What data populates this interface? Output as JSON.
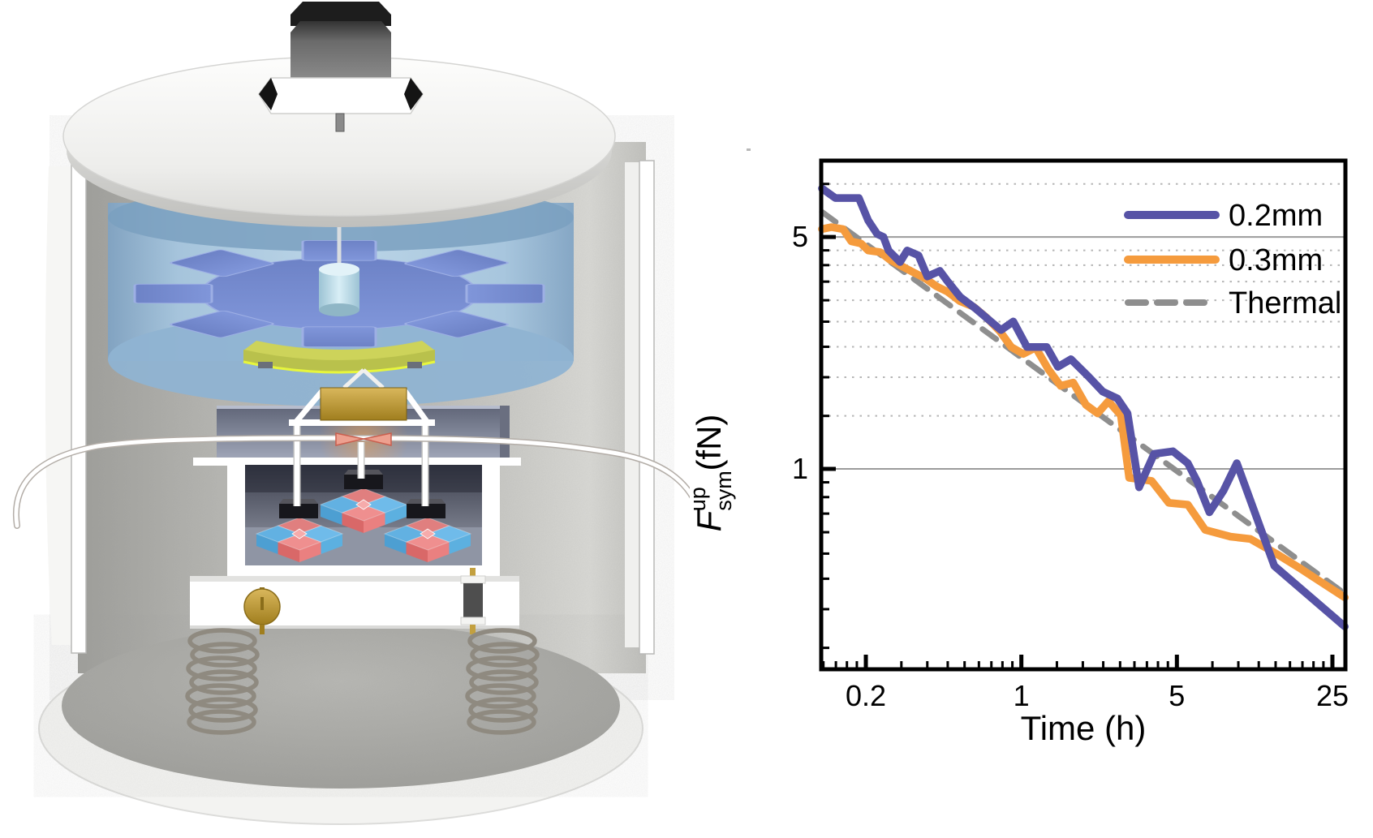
{
  "chart_data": {
    "type": "line",
    "title": "",
    "xlabel": "Time (h)",
    "ylabel": "F_sym^up (fN)",
    "ylabel_parts": {
      "base": "F",
      "subscript": "sym",
      "superscript": "up",
      "unit": "(fN)"
    },
    "x_scale": "log",
    "y_scale": "log",
    "xlim": [
      0.126,
      28.6
    ],
    "ylim": [
      0.249,
      8.49
    ],
    "x_ticks_major": [
      0.2,
      1,
      5,
      25
    ],
    "x_tick_labels": [
      "0.2",
      "1",
      "5",
      "25"
    ],
    "x_ticks_minor": [
      0.1289,
      0.1467,
      0.1644,
      0.1822,
      0.2889,
      0.3778,
      0.4667,
      0.5556,
      0.6444,
      0.7333,
      0.8222,
      0.9111,
      1.4444,
      1.8889,
      2.3333,
      2.7778,
      3.2222,
      3.6667,
      4.1111,
      4.5556,
      7.2222,
      9.4444,
      11.6667,
      13.8889,
      16.1111,
      18.3333,
      20.5556,
      22.7778
    ],
    "y_ticks_major": [
      5,
      1
    ],
    "y_tick_labels": [
      "5",
      "1"
    ],
    "y_ticks_minor": [
      7.2222,
      4.5556,
      4.1111,
      3.6667,
      3.2222,
      2.7778,
      2.3333,
      1.8889,
      1.4444,
      0.9111,
      0.8222,
      0.7333,
      0.6444,
      0.5556,
      0.4667,
      0.3778,
      0.2889
    ],
    "y_gridlines_solid": [
      5,
      1
    ],
    "y_gridlines_dotted": [
      7.2222,
      4.5556,
      4.1111,
      3.6667,
      3.2222,
      2.7778,
      2.3333,
      1.8889,
      1.4444
    ],
    "grid": "horizontal-only",
    "legend_position": "top-right",
    "legend": [
      {
        "label": "0.2mm",
        "color": "#5753a6",
        "dash": "solid"
      },
      {
        "label": "0.3mm",
        "color": "#f59b3d",
        "dash": "solid"
      },
      {
        "label": "Thermal",
        "color": "#8e8e8e",
        "dash": "dashed"
      }
    ],
    "series": [
      {
        "name": "Thermal",
        "color": "#8e8e8e",
        "dashed": true,
        "points": [
          [
            0.127,
            5.95
          ],
          [
            28.5,
            0.42
          ]
        ]
      },
      {
        "name": "0.3mm",
        "color": "#f59b3d",
        "dashed": false,
        "points": [
          [
            0.127,
            5.28
          ],
          [
            0.14,
            5.35
          ],
          [
            0.158,
            5.28
          ],
          [
            0.172,
            4.85
          ],
          [
            0.19,
            4.78
          ],
          [
            0.205,
            4.55
          ],
          [
            0.232,
            4.5
          ],
          [
            0.255,
            4.28
          ],
          [
            0.29,
            4.08
          ],
          [
            0.325,
            3.92
          ],
          [
            0.37,
            3.75
          ],
          [
            0.415,
            3.55
          ],
          [
            0.465,
            3.42
          ],
          [
            0.53,
            3.2
          ],
          [
            0.61,
            3.08
          ],
          [
            0.7,
            2.85
          ],
          [
            0.8,
            2.6
          ],
          [
            0.9,
            2.33
          ],
          [
            1.02,
            2.22
          ],
          [
            1.16,
            2.32
          ],
          [
            1.32,
            2.0
          ],
          [
            1.5,
            1.78
          ],
          [
            1.71,
            1.82
          ],
          [
            1.95,
            1.56
          ],
          [
            2.2,
            1.47
          ],
          [
            2.46,
            1.6
          ],
          [
            2.8,
            1.45
          ],
          [
            3.05,
            0.94
          ],
          [
            3.85,
            0.92
          ],
          [
            4.6,
            0.79
          ],
          [
            5.6,
            0.78
          ],
          [
            6.7,
            0.655
          ],
          [
            8.7,
            0.625
          ],
          [
            10.7,
            0.615
          ],
          [
            14.0,
            0.555
          ],
          [
            18.0,
            0.5
          ],
          [
            23.5,
            0.445
          ],
          [
            28.4,
            0.41
          ]
        ]
      },
      {
        "name": "0.2mm",
        "color": "#5753a6",
        "dashed": false,
        "points": [
          [
            0.127,
            7.0
          ],
          [
            0.146,
            6.55
          ],
          [
            0.186,
            6.55
          ],
          [
            0.205,
            5.6
          ],
          [
            0.225,
            5.1
          ],
          [
            0.24,
            5.0
          ],
          [
            0.253,
            4.55
          ],
          [
            0.285,
            4.2
          ],
          [
            0.307,
            4.55
          ],
          [
            0.345,
            4.4
          ],
          [
            0.378,
            3.8
          ],
          [
            0.43,
            3.95
          ],
          [
            0.465,
            3.68
          ],
          [
            0.53,
            3.3
          ],
          [
            0.62,
            3.05
          ],
          [
            0.72,
            2.8
          ],
          [
            0.81,
            2.62
          ],
          [
            0.92,
            2.78
          ],
          [
            1.06,
            2.33
          ],
          [
            1.3,
            2.33
          ],
          [
            1.46,
            2.03
          ],
          [
            1.67,
            2.14
          ],
          [
            2.0,
            1.9
          ],
          [
            2.32,
            1.71
          ],
          [
            2.7,
            1.63
          ],
          [
            3.0,
            1.47
          ],
          [
            3.38,
            0.88
          ],
          [
            3.95,
            1.11
          ],
          [
            4.8,
            1.13
          ],
          [
            5.6,
            1.04
          ],
          [
            6.15,
            0.92
          ],
          [
            7.0,
            0.74
          ],
          [
            8.1,
            0.86
          ],
          [
            9.3,
            1.04
          ],
          [
            13.7,
            0.51
          ],
          [
            28.4,
            0.335
          ]
        ]
      }
    ]
  },
  "apparatus": {
    "colors": {
      "shell_white": "#f3f3f1",
      "interior_gray": "#b4b4b0",
      "floor_gray": "#a6a6a2",
      "glass_blue": "#9ec2de",
      "rotor_blue": "#7287cc",
      "hub_blue": "#c9e6f0",
      "shield_yellow": "#bfc74e",
      "shield_edge": "#e7f63c",
      "mass_gold": "#c3a03f",
      "magnet_red": "#ee8a8a",
      "magnet_blue": "#6ab8e8",
      "motor_dark": "#3c3c3c",
      "spring_gray": "#8f8a80",
      "slab_gray": "#7d8296",
      "fiber_joint_red": "#e0614e"
    },
    "parts": [
      "drive-motor",
      "hex-mount",
      "chamber-lid",
      "vacuum-chamber-shell",
      "glass-cell",
      "gear-rotor",
      "rotor-hub",
      "rotor-shaft",
      "shield-disk",
      "test-mass-block",
      "support-frame",
      "torsion-beam",
      "fiber-joint",
      "torsion-fiber",
      "magnet-assembly-center",
      "magnet-assembly-left",
      "magnet-assembly-right",
      "hanging-blocks",
      "inner-box",
      "isolation-stage",
      "adjustment-knob",
      "damper-cylinder",
      "support-spring-left",
      "support-spring-right",
      "base-plate"
    ]
  }
}
